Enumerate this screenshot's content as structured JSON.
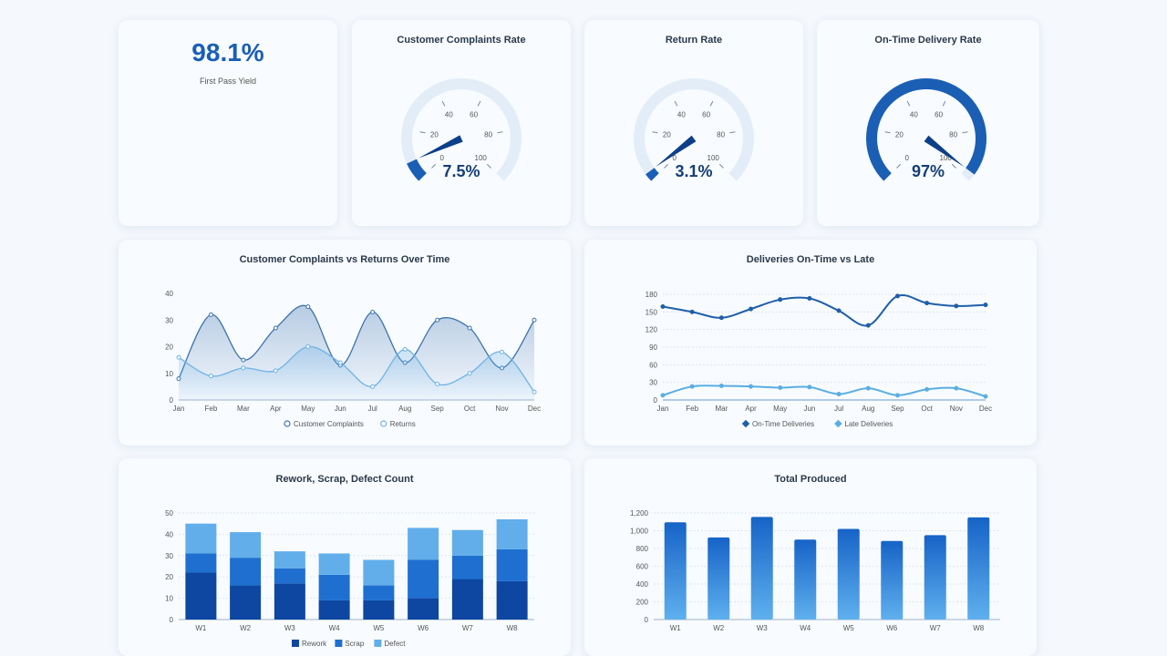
{
  "kpi": {
    "value": "98.1%",
    "label": "First Pass Yield"
  },
  "gauges": [
    {
      "title": "Customer Complaints Rate",
      "value": 7.5,
      "display": "7.5%",
      "ticks": [
        "0",
        "20",
        "40",
        "60",
        "80",
        "100"
      ]
    },
    {
      "title": "Return Rate",
      "value": 3.1,
      "display": "3.1%",
      "ticks": [
        "0",
        "20",
        "40",
        "60",
        "80",
        "100"
      ]
    },
    {
      "title": "On-Time Delivery Rate",
      "value": 97,
      "display": "97%",
      "ticks": [
        "0",
        "20",
        "40",
        "60",
        "80",
        "100"
      ]
    }
  ],
  "colors": {
    "dark": "#0d47a1",
    "mid": "#1e6fd0",
    "light": "#62aeea",
    "grid": "#dde6f0"
  },
  "chart_data": [
    {
      "type": "area",
      "title": "Customer Complaints vs Returns Over Time",
      "categories": [
        "Jan",
        "Feb",
        "Mar",
        "Apr",
        "May",
        "Jun",
        "Jul",
        "Aug",
        "Sep",
        "Oct",
        "Nov",
        "Dec"
      ],
      "ylim": [
        0,
        40
      ],
      "yticks": [
        "0",
        "10",
        "20",
        "30",
        "40"
      ],
      "legend": "bottom",
      "series": [
        {
          "name": "Customer Complaints",
          "values": [
            8,
            32,
            15,
            27,
            35,
            13,
            33,
            14,
            30,
            27,
            12,
            30
          ]
        },
        {
          "name": "Returns",
          "values": [
            16,
            9,
            12,
            11,
            20,
            14,
            5,
            19,
            6,
            10,
            18,
            3
          ]
        }
      ]
    },
    {
      "type": "line",
      "title": "Deliveries On-Time vs Late",
      "categories": [
        "Jan",
        "Feb",
        "Mar",
        "Apr",
        "May",
        "Jun",
        "Jul",
        "Aug",
        "Sep",
        "Oct",
        "Nov",
        "Dec"
      ],
      "ylim": [
        0,
        180
      ],
      "yticks": [
        "0",
        "30",
        "60",
        "90",
        "120",
        "150",
        "180"
      ],
      "legend": "bottom",
      "series": [
        {
          "name": "On-Time Deliveries",
          "values": [
            159,
            150,
            140,
            155,
            171,
            173,
            152,
            127,
            177,
            165,
            160,
            162
          ]
        },
        {
          "name": "Late Deliveries",
          "values": [
            8,
            23,
            24,
            23,
            21,
            22,
            10,
            20,
            8,
            18,
            20,
            6
          ]
        }
      ]
    },
    {
      "type": "bar",
      "stacked": true,
      "title": "Rework, Scrap, Defect Count",
      "categories": [
        "W1",
        "W2",
        "W3",
        "W4",
        "W5",
        "W6",
        "W7",
        "W8"
      ],
      "ylim": [
        0,
        50
      ],
      "yticks": [
        "0",
        "10",
        "20",
        "30",
        "40",
        "50"
      ],
      "legend": "bottom",
      "series": [
        {
          "name": "Rework",
          "values": [
            22,
            16,
            17,
            9,
            9,
            10,
            19,
            18
          ]
        },
        {
          "name": "Scrap",
          "values": [
            9,
            13,
            7,
            12,
            7,
            18,
            11,
            15
          ]
        },
        {
          "name": "Defect",
          "values": [
            14,
            12,
            8,
            10,
            12,
            15,
            12,
            14
          ]
        }
      ]
    },
    {
      "type": "bar",
      "title": "Total Produced",
      "categories": [
        "W1",
        "W2",
        "W3",
        "W4",
        "W5",
        "W6",
        "W7",
        "W8"
      ],
      "ylim": [
        0,
        1200
      ],
      "yticks": [
        "0",
        "200",
        "400",
        "600",
        "800",
        "1,000",
        "1,200"
      ],
      "series": [
        {
          "values": [
            1095,
            925,
            1155,
            900,
            1020,
            885,
            950,
            1150
          ]
        }
      ]
    }
  ]
}
